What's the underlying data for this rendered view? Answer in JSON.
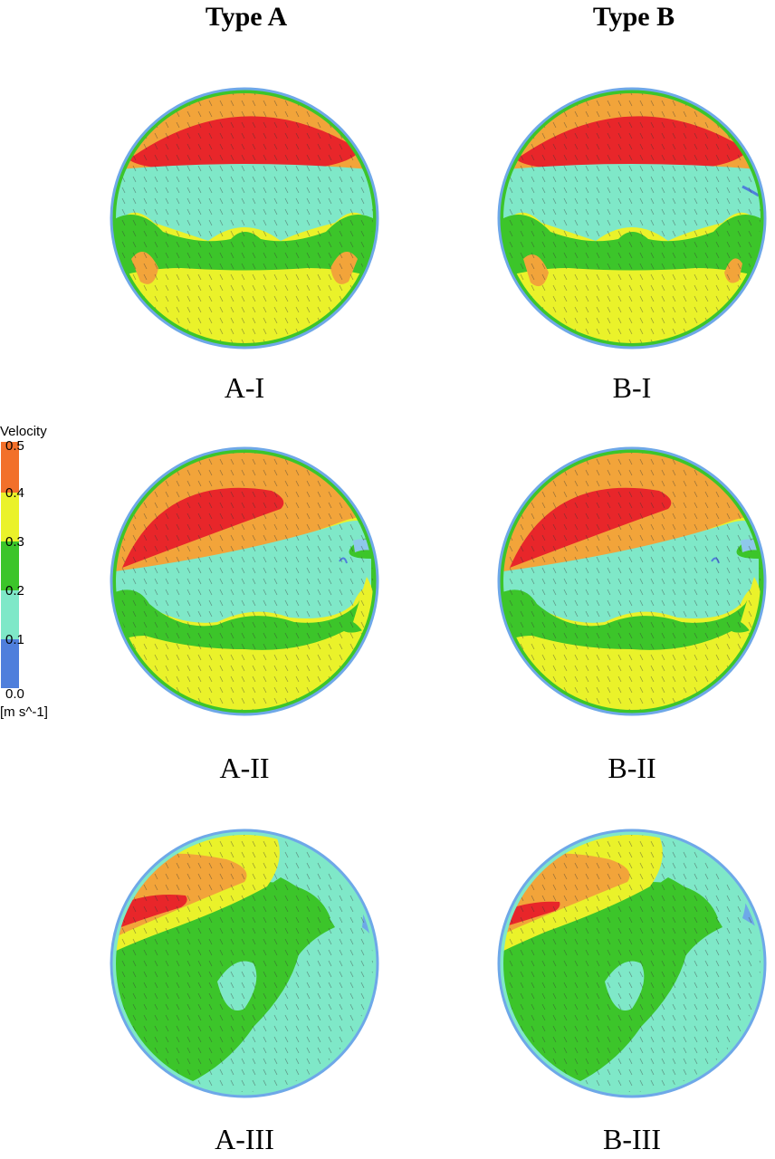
{
  "columns": {
    "a_title": "Type A",
    "b_title": "Type B"
  },
  "panels": {
    "a1": "A-I",
    "b1": "B-I",
    "a2": "A-II",
    "b2": "B-II",
    "a3": "A-III",
    "b3": "B-III"
  },
  "legend": {
    "title": "Velocity",
    "unit": "[m s^-1]",
    "ticks": [
      "0.5",
      "0.4",
      "0.3",
      "0.2",
      "0.1",
      "0.0"
    ],
    "colors": {
      "c_0_1": "#4f7fdc",
      "c_1_2": "#7fe8c8",
      "c_2_3": "#3cc52a",
      "c_3_4": "#eaf22a",
      "c_4_5": "#f28a2a",
      "c_max": "#e8262a"
    }
  }
}
